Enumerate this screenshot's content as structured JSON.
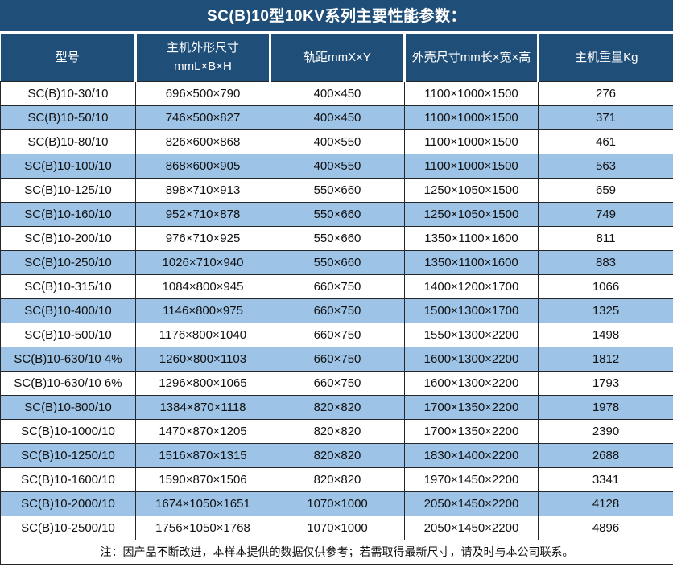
{
  "title": "SC(B)10型10KV系列主要性能参数：",
  "colors": {
    "header_bg": "#1F4E79",
    "header_text": "#FFFFFF",
    "row_bg": "#FFFFFF",
    "row_alt_bg": "#9DC3E6",
    "body_text": "#111111",
    "border": "#262626"
  },
  "table": {
    "headers": [
      {
        "lines": [
          "型号"
        ]
      },
      {
        "lines": [
          "主机外形尺寸",
          "mmL×B×H"
        ]
      },
      {
        "lines": [
          "轨距mmX×Y"
        ]
      },
      {
        "lines": [
          "外壳尺寸mm长×宽×高"
        ]
      },
      {
        "lines": [
          "主机重量Kg"
        ]
      }
    ],
    "rows": [
      [
        "SC(B)10-30/10",
        "696×500×790",
        "400×450",
        "1100×1000×1500",
        "276"
      ],
      [
        "SC(B)10-50/10",
        "746×500×827",
        "400×450",
        "1100×1000×1500",
        "371"
      ],
      [
        "SC(B)10-80/10",
        "826×600×868",
        "400×550",
        "1100×1000×1500",
        "461"
      ],
      [
        "SC(B)10-100/10",
        "868×600×905",
        "400×550",
        "1100×1000×1500",
        "563"
      ],
      [
        "SC(B)10-125/10",
        "898×710×913",
        "550×660",
        "1250×1050×1500",
        "659"
      ],
      [
        "SC(B)10-160/10",
        "952×710×878",
        "550×660",
        "1250×1050×1500",
        "749"
      ],
      [
        "SC(B)10-200/10",
        "976×710×925",
        "550×660",
        "1350×1100×1600",
        "811"
      ],
      [
        "SC(B)10-250/10",
        "1026×710×940",
        "550×660",
        "1350×1100×1600",
        "883"
      ],
      [
        "SC(B)10-315/10",
        "1084×800×945",
        "660×750",
        "1400×1200×1700",
        "1066"
      ],
      [
        "SC(B)10-400/10",
        "1146×800×975",
        "660×750",
        "1500×1300×1700",
        "1325"
      ],
      [
        "SC(B)10-500/10",
        "1176×800×1040",
        "660×750",
        "1550×1300×2200",
        "1498"
      ],
      [
        "SC(B)10-630/10 4%",
        "1260×800×1103",
        "660×750",
        "1600×1300×2200",
        "1812"
      ],
      [
        "SC(B)10-630/10 6%",
        "1296×800×1065",
        "660×750",
        "1600×1300×2200",
        "1793"
      ],
      [
        "SC(B)10-800/10",
        "1384×870×1118",
        "820×820",
        "1700×1350×2200",
        "1978"
      ],
      [
        "SC(B)10-1000/10",
        "1470×870×1205",
        "820×820",
        "1700×1350×2200",
        "2390"
      ],
      [
        "SC(B)10-1250/10",
        "1516×870×1315",
        "820×820",
        "1830×1400×2200",
        "2688"
      ],
      [
        "SC(B)10-1600/10",
        "1590×870×1506",
        "820×820",
        "1970×1450×2200",
        "3341"
      ],
      [
        "SC(B)10-2000/10",
        "1674×1050×1651",
        "1070×1000",
        "2050×1450×2200",
        "4128"
      ],
      [
        "SC(B)10-2500/10",
        "1756×1050×1768",
        "1070×1000",
        "2050×1450×2200",
        "4896"
      ]
    ],
    "footnote": "注：因产品不断改进，本样本提供的数据仅供参考；若需取得最新尺寸，请及时与本公司联系。"
  }
}
